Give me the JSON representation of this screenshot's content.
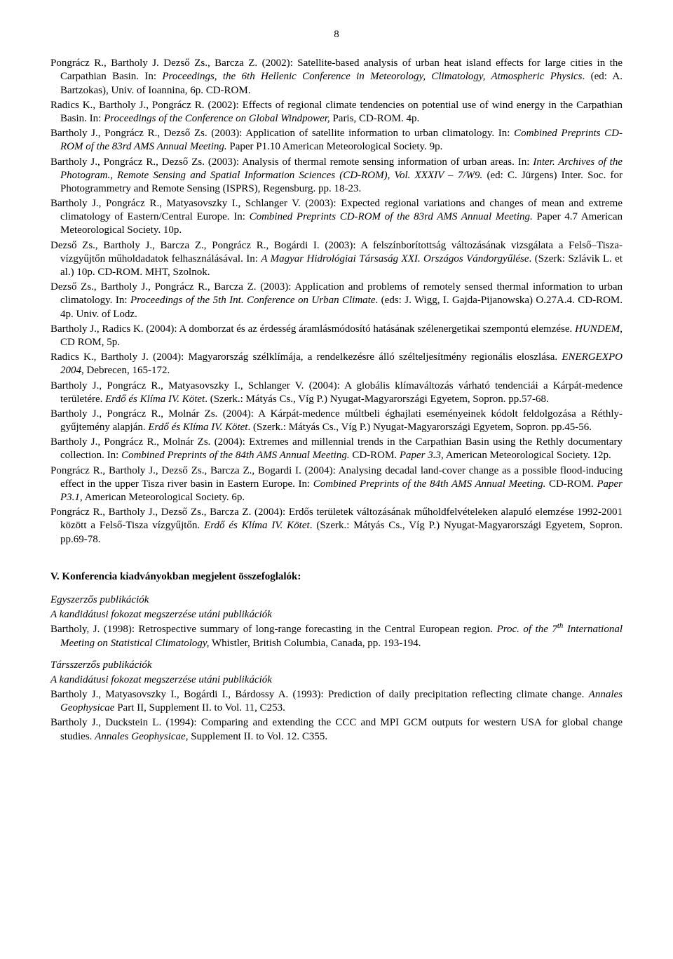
{
  "page_number": "8",
  "refs_block1": [
    "Pongrácz R., Bartholy J. Dezső Zs., Barcza Z. (2002): Satellite-based analysis of urban heat island effects for large cities in the Carpathian Basin. In: <i>Proceedings, the 6th Hellenic Conference in Meteorology, Climatology, Atmospheric Physics</i>. (ed: A. Bartzokas), Univ. of Ioannina, 6p. CD-ROM.",
    "Radics K., Bartholy J., Pongrácz R. (2002): Effects of regional climate tendencies on potential use of wind energy in the Carpathian Basin. In: <i>Proceedings of the Conference on Global Windpower,</i> Paris, CD-ROM. 4p.",
    "Bartholy J., Pongrácz R., Dezső Zs. (2003): Application of satellite information to urban climatology. In: <i>Combined Preprints CD-ROM of the 83rd AMS Annual Meeting.</i> Paper P1.10 American Meteorological Society. 9p.",
    "Bartholy J., Pongrácz R., Dezső Zs. (2003): Analysis of thermal remote sensing information of urban areas. In: <i>Inter. Archives of the Photogram., Remote Sensing and Spatial Information Sciences (CD-ROM), Vol. XXXIV – 7/W9.</i> (ed: C. Jürgens) Inter. Soc. for Photogrammetry and Remote Sensing (ISPRS), Regensburg. pp. 18-23.",
    "Bartholy J., Pongrácz R., Matyasovszky I., Schlanger V. (2003): Expected regional variations and changes of mean and extreme climatology of Eastern/Central Europe. In: <i>Combined Preprints CD-ROM of the 83rd AMS Annual Meeting.</i> Paper 4.7 American Meteorological Society. 10p.",
    "Dezső Zs., Bartholy J., Barcza Z., Pongrácz R., Bogárdi I. (2003): A felszínborítottság változásának vizsgálata a Felső–Tisza-vízgyűjtőn műholdadatok felhasználásával. In: <i>A Magyar Hidrológiai Társaság XXI. Országos Vándorgyűlése</i>. (Szerk: Szlávik L. et al.) 10p. CD-ROM. MHT, Szolnok.",
    "Dezső Zs., Bartholy J., Pongrácz R., Barcza Z. (2003): Application and problems of remotely sensed thermal information to urban climatology. In: <i>Proceedings of the 5th Int. Conference on Urban Climate</i>. (eds: J. Wigg, I. Gajda-Pijanowska) O.27A.4. CD-ROM. 4p. Univ. of Lodz.",
    "Bartholy J., Radics K. (2004): A domborzat és az érdesség áramlásmódosító hatásának szélenergetikai szempontú elemzése. <i>HUNDEM</i>, CD ROM, 5p.",
    "Radics K., Bartholy J. (2004): Magyarország szélklímája, a rendelkezésre álló szélteljesítmény regionális eloszlása. <i>ENERGEXPO 2004</i>, Debrecen, 165-172.",
    "Bartholy J., Pongrácz R., Matyasovszky I., Schlanger V. (2004): A globális klímaváltozás várható tendenciái a Kárpát-medence területére. <i>Erdő és Klíma IV. Kötet</i>. (Szerk.: Mátyás Cs., Víg P.) Nyugat-Magyarországi Egyetem, Sopron. pp.57-68.",
    "Bartholy J., Pongrácz R., Molnár Zs. (2004): A Kárpát-medence múltbeli éghajlati eseményeinek kódolt feldolgozása a Réthly-gyűjtemény alapján. <i>Erdő és Klíma IV. Kötet</i>. (Szerk.: Mátyás Cs., Víg P.) Nyugat-Magyarországi Egyetem, Sopron. pp.45-56.",
    "Bartholy J., Pongrácz R., Molnár Zs. (2004): Extremes and millennial trends in the Carpathian Basin using the Rethly documentary collection. In: <i>Combined Preprints of the 84th AMS Annual Meeting.</i> CD-ROM. <i>Paper 3.3,</i> American Meteorological Society. 12p.",
    "Pongrácz R., Bartholy J., Dezső Zs., Barcza Z., Bogardi I. (2004): Analysing decadal land-cover change as a possible flood-inducing effect in the upper Tisza river basin in Eastern Europe. In: <i>Combined Preprints of the 84th AMS Annual Meeting.</i> CD-ROM. <i>Paper P3.1,</i> American Meteorological Society. 6p.",
    "Pongrácz R., Bartholy J., Dezső Zs., Barcza Z. (2004): Erdős területek változásának műholdfelvételeken alapuló elemzése 1992-2001 között a Felső-Tisza vízgyűjtőn. <i>Erdő és Klíma IV. Kötet</i>. (Szerk.: Mátyás Cs., Víg P.) Nyugat-Magyarországi Egyetem, Sopron. pp.69-78."
  ],
  "section_head": "V. Konferencia kiadványokban megjelent összefoglalók:",
  "sub_single": "Egyszerzős publikációk",
  "sub_after": "A kandidátusi fokozat megszerzése utáni publikációk",
  "refs_block2": [
    "Bartholy, J. (1998): Retrospective summary of long-range forecasting in the Central European region. <i>Proc. of the 7<sup>th</sup> International Meeting on Statistical Climatology,</i> Whistler, British Columbia, Canada, pp. 193-194."
  ],
  "sub_multi": "Társszerzős publikációk",
  "refs_block3": [
    "Bartholy J., Matyasovszky I., Bogárdi I., Bárdossy A. (1993): Prediction of daily precipitation reflecting climate change. <i>Annales Geophysicae</i> Part II, Supplement II. to Vol. 11, C253.",
    "Bartholy J., Duckstein L. (1994): Comparing and extending the CCC and MPI GCM outputs for western USA for global change studies. <i>Annales Geophysicae,</i> Supplement II. to Vol. 12. C355."
  ]
}
